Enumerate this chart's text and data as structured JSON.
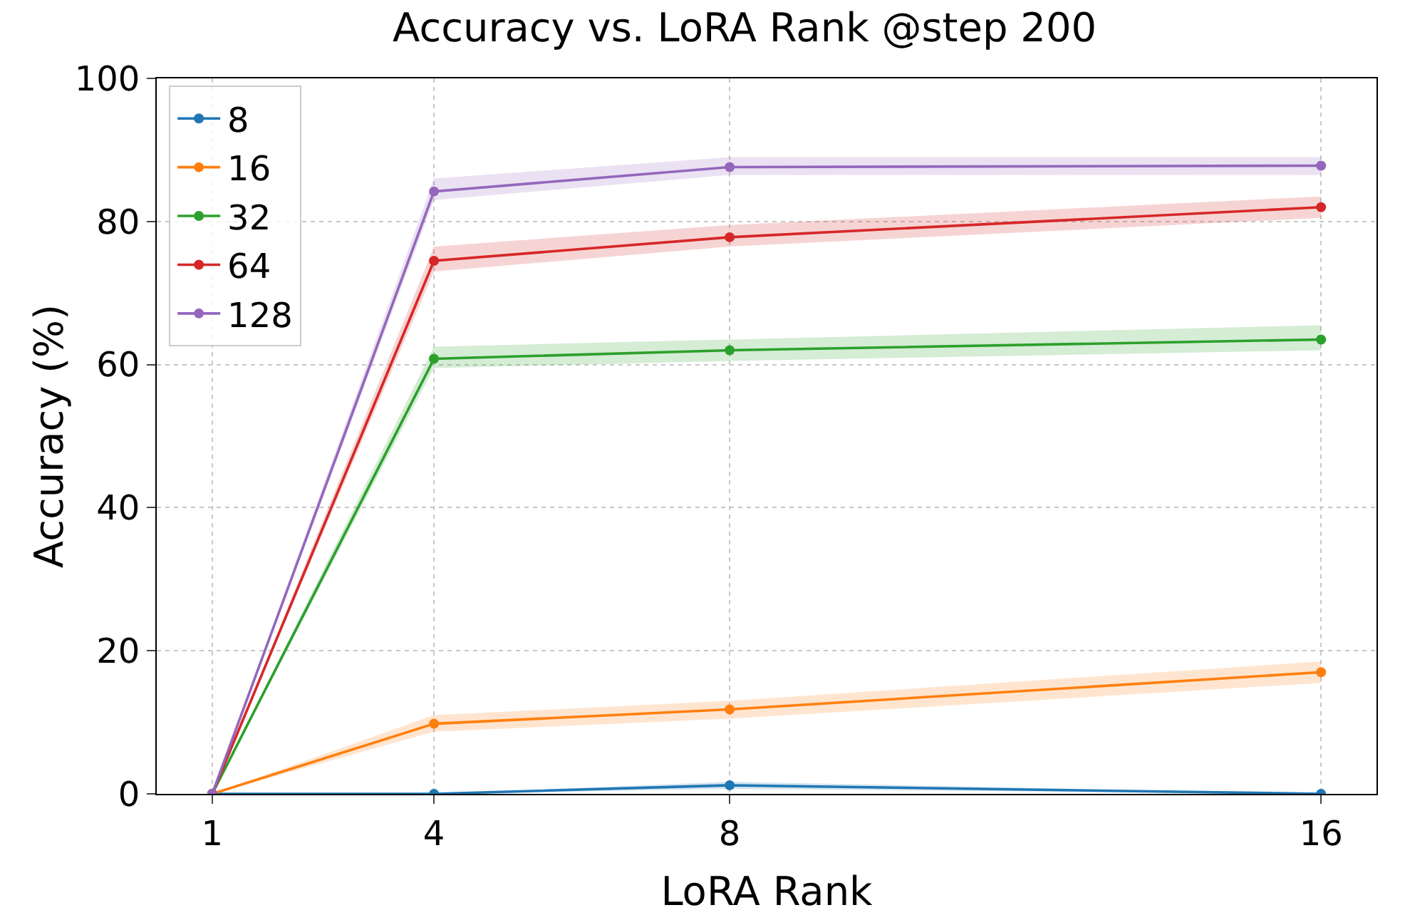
{
  "chart_data": {
    "type": "line",
    "title": "Accuracy vs. LoRA Rank @step 200",
    "xlabel": "LoRA Rank",
    "ylabel": "Accuracy (%)",
    "x": [
      1,
      4,
      8,
      16
    ],
    "xlim": [
      0.25,
      16.75
    ],
    "xticks": [
      1,
      4,
      8,
      16
    ],
    "ylim": [
      0,
      100
    ],
    "yticks": [
      0,
      20,
      40,
      60,
      80,
      100
    ],
    "grid": true,
    "legend": "top left",
    "marker": "circle",
    "line_style": "solid",
    "series": [
      {
        "name": "8",
        "color": "#1f77b4",
        "values": [
          0,
          0,
          1.2,
          0
        ],
        "lower": [
          0,
          0,
          0.7,
          0
        ],
        "upper": [
          0,
          0,
          1.7,
          0
        ]
      },
      {
        "name": "16",
        "color": "#ff7f0e",
        "values": [
          0,
          9.8,
          11.8,
          17
        ],
        "lower": [
          0,
          8.7,
          10.5,
          15.5
        ],
        "upper": [
          0,
          11,
          13,
          18.5
        ]
      },
      {
        "name": "32",
        "color": "#2ca02c",
        "values": [
          0,
          60.8,
          62,
          63.5
        ],
        "lower": [
          0,
          59.5,
          60.5,
          62
        ],
        "upper": [
          0,
          62.5,
          63.5,
          65.5
        ]
      },
      {
        "name": "64",
        "color": "#d62728",
        "values": [
          0,
          74.5,
          77.8,
          82
        ],
        "lower": [
          0,
          73,
          76.5,
          80.5
        ],
        "upper": [
          0,
          76.5,
          79.5,
          83.5
        ]
      },
      {
        "name": "128",
        "color": "#9467bd",
        "values": [
          0,
          84.2,
          87.6,
          87.8
        ],
        "lower": [
          0,
          83,
          86.5,
          86.5
        ],
        "upper": [
          0,
          86,
          89,
          89
        ]
      }
    ]
  }
}
